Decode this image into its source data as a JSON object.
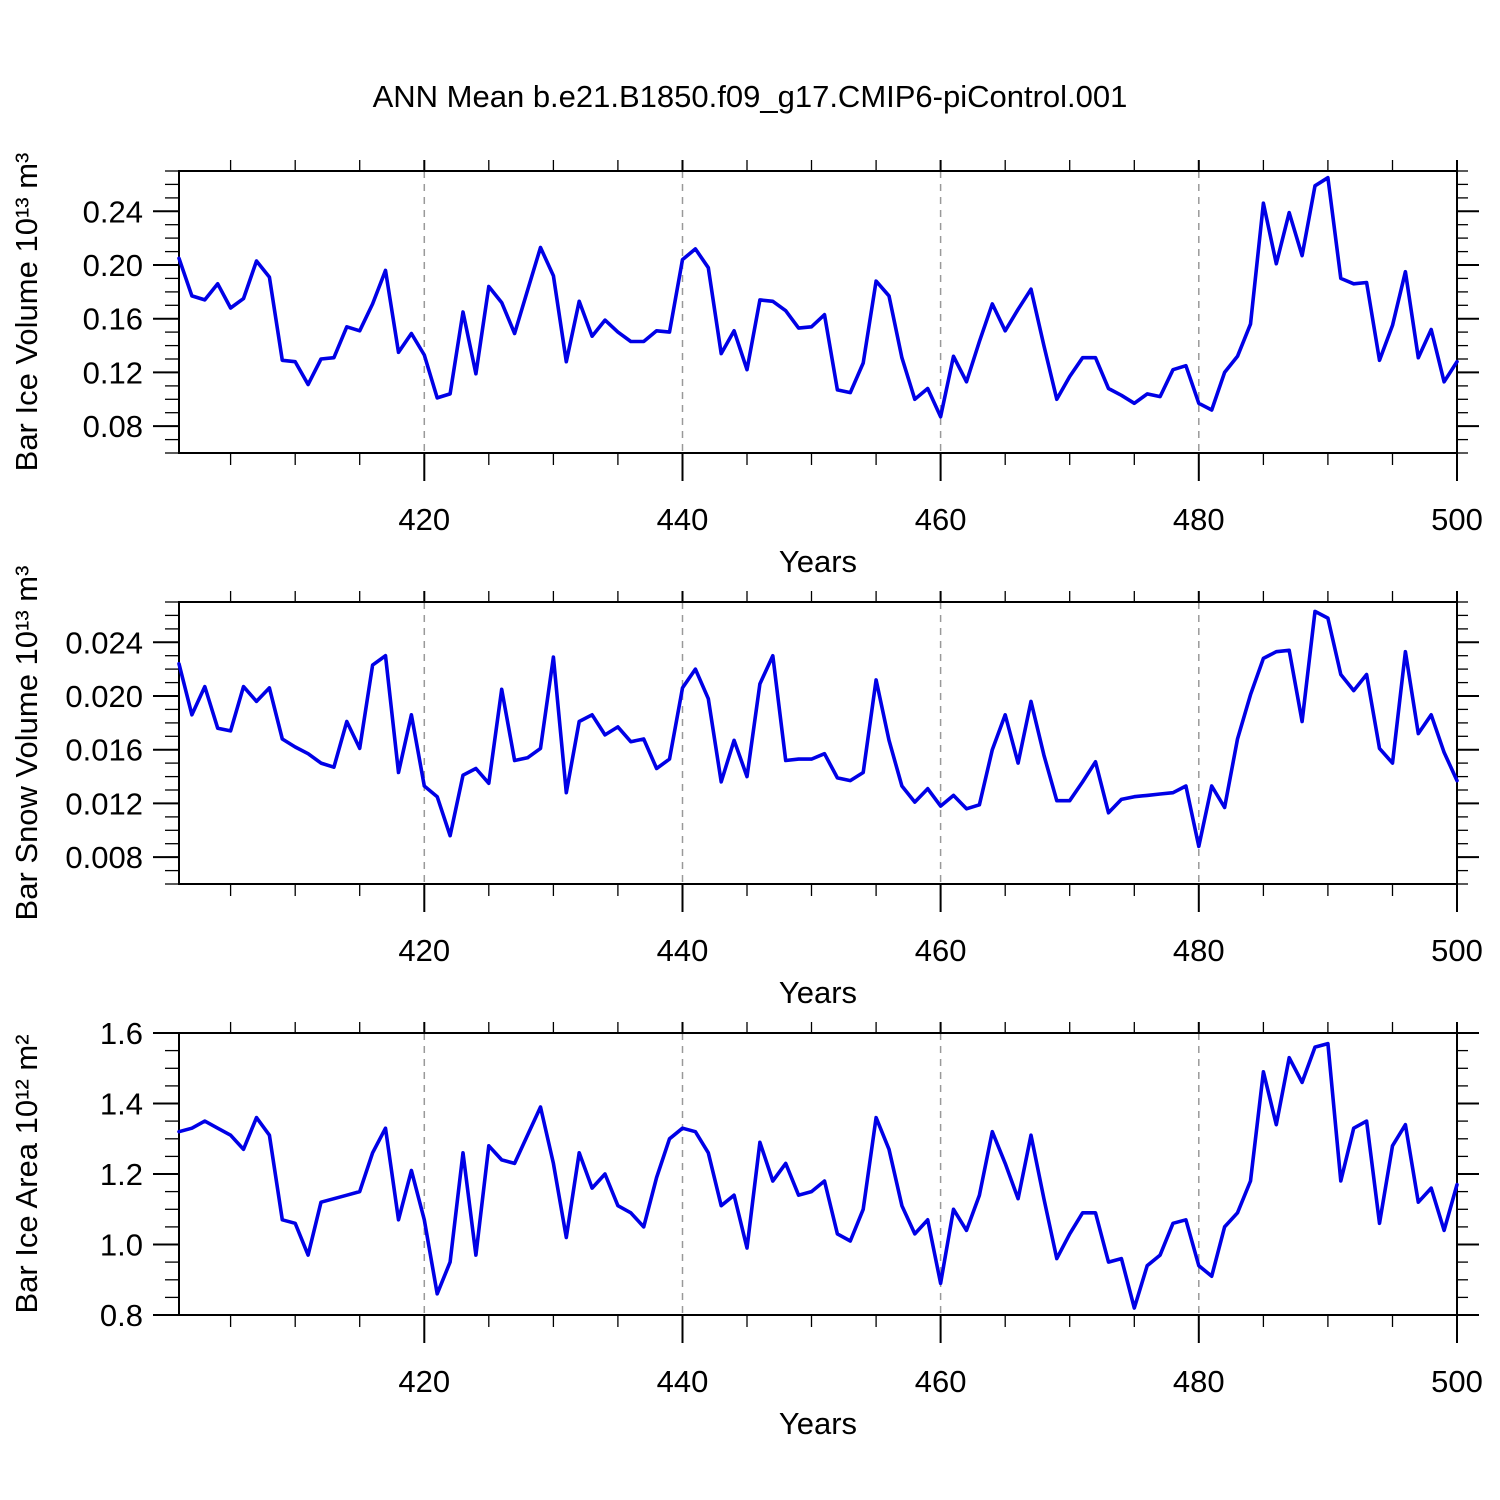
{
  "title": "ANN Mean b.e21.B1850.f09_g17.CMIP6-piControl.001",
  "background": "#ffffff",
  "text_color": "#000000",
  "grid_color": "#999999",
  "line_color": "#0000e6",
  "chart_data": [
    {
      "type": "line",
      "id": "ice-volume",
      "ylabel": "Bar Ice Volume 10¹³ m³",
      "xlabel": "Years",
      "legend": "none",
      "grid": "dashed vertical lines at 420, 440, 460, 480",
      "xlim": [
        401,
        500
      ],
      "ylim": [
        0.06,
        0.27
      ],
      "x_start": 401,
      "x_end": 500,
      "x_step": 1,
      "xticks": [
        420,
        440,
        460,
        480,
        500
      ],
      "xtick_labels": [
        "420",
        "440",
        "460",
        "480",
        "500"
      ],
      "xminor_step": 5,
      "yticks": [
        0.08,
        0.12,
        0.16,
        0.2,
        0.24
      ],
      "ytick_labels": [
        "0.08",
        "0.12",
        "0.16",
        "0.20",
        "0.24"
      ],
      "yminor_step": 0.01,
      "grid_vlines": [
        420,
        440,
        460,
        480
      ],
      "values": [
        0.205,
        0.177,
        0.174,
        0.186,
        0.168,
        0.175,
        0.203,
        0.191,
        0.129,
        0.128,
        0.111,
        0.13,
        0.131,
        0.154,
        0.151,
        0.171,
        0.196,
        0.135,
        0.149,
        0.133,
        0.101,
        0.104,
        0.165,
        0.119,
        0.184,
        0.172,
        0.149,
        0.181,
        0.213,
        0.192,
        0.128,
        0.173,
        0.147,
        0.159,
        0.15,
        0.143,
        0.143,
        0.151,
        0.15,
        0.204,
        0.212,
        0.198,
        0.134,
        0.151,
        0.122,
        0.174,
        0.173,
        0.166,
        0.153,
        0.154,
        0.163,
        0.107,
        0.105,
        0.127,
        0.188,
        0.177,
        0.131,
        0.1,
        0.108,
        0.087,
        0.132,
        0.113,
        0.143,
        0.171,
        0.151,
        0.167,
        0.182,
        0.14,
        0.1,
        0.117,
        0.131,
        0.131,
        0.108,
        0.103,
        0.097,
        0.104,
        0.102,
        0.122,
        0.125,
        0.097,
        0.092,
        0.12,
        0.132,
        0.156,
        0.246,
        0.201,
        0.239,
        0.207,
        0.259,
        0.265,
        0.19,
        0.186,
        0.187,
        0.129,
        0.155,
        0.195,
        0.131,
        0.152,
        0.113,
        0.128
      ]
    },
    {
      "type": "line",
      "id": "snow-volume",
      "ylabel": "Bar Snow Volume 10¹³ m³",
      "xlabel": "Years",
      "legend": "none",
      "grid": "dashed vertical lines at 420, 440, 460, 480",
      "xlim": [
        401,
        500
      ],
      "ylim": [
        0.006,
        0.027
      ],
      "x_start": 401,
      "x_end": 500,
      "x_step": 1,
      "xticks": [
        420,
        440,
        460,
        480,
        500
      ],
      "xtick_labels": [
        "420",
        "440",
        "460",
        "480",
        "500"
      ],
      "xminor_step": 5,
      "yticks": [
        0.008,
        0.012,
        0.016,
        0.02,
        0.024
      ],
      "ytick_labels": [
        "0.008",
        "0.012",
        "0.016",
        "0.020",
        "0.024"
      ],
      "yminor_step": 0.001,
      "grid_vlines": [
        420,
        440,
        460,
        480
      ],
      "values": [
        0.0224,
        0.0186,
        0.0207,
        0.0176,
        0.0174,
        0.0207,
        0.0196,
        0.0206,
        0.0168,
        0.0162,
        0.0157,
        0.015,
        0.0147,
        0.0181,
        0.0161,
        0.0223,
        0.023,
        0.0143,
        0.0186,
        0.0133,
        0.0125,
        0.0096,
        0.0141,
        0.0146,
        0.0135,
        0.0205,
        0.0152,
        0.0154,
        0.0161,
        0.0229,
        0.0128,
        0.0181,
        0.0186,
        0.0171,
        0.0177,
        0.0166,
        0.0168,
        0.0146,
        0.0153,
        0.0206,
        0.022,
        0.0198,
        0.0136,
        0.0167,
        0.014,
        0.0209,
        0.023,
        0.0152,
        0.0153,
        0.0153,
        0.0157,
        0.0139,
        0.0137,
        0.0143,
        0.0212,
        0.0167,
        0.0133,
        0.0121,
        0.0131,
        0.0118,
        0.0126,
        0.0116,
        0.0119,
        0.016,
        0.0186,
        0.015,
        0.0196,
        0.0156,
        0.0122,
        0.0122,
        0.0136,
        0.0151,
        0.0113,
        0.0123,
        0.0125,
        0.0126,
        0.0127,
        0.0128,
        0.0133,
        0.0088,
        0.0133,
        0.0117,
        0.0168,
        0.0201,
        0.0228,
        0.0233,
        0.0234,
        0.0181,
        0.0263,
        0.0258,
        0.0216,
        0.0204,
        0.0216,
        0.0161,
        0.015,
        0.0233,
        0.0172,
        0.0186,
        0.0158,
        0.0137
      ]
    },
    {
      "type": "line",
      "id": "ice-area",
      "ylabel": "Bar Ice Area 10¹² m²",
      "xlabel": "Years",
      "legend": "none",
      "grid": "dashed vertical lines at 420, 440, 460, 480",
      "xlim": [
        401,
        500
      ],
      "ylim": [
        0.8,
        1.6
      ],
      "x_start": 401,
      "x_end": 500,
      "x_step": 1,
      "xticks": [
        420,
        440,
        460,
        480,
        500
      ],
      "xtick_labels": [
        "420",
        "440",
        "460",
        "480",
        "500"
      ],
      "xminor_step": 5,
      "yticks": [
        0.8,
        1.0,
        1.2,
        1.4,
        1.6
      ],
      "ytick_labels": [
        "0.8",
        "1.0",
        "1.2",
        "1.4",
        "1.6"
      ],
      "yminor_step": 0.05,
      "grid_vlines": [
        420,
        440,
        460,
        480
      ],
      "values": [
        1.32,
        1.33,
        1.35,
        1.33,
        1.31,
        1.27,
        1.36,
        1.31,
        1.07,
        1.06,
        0.97,
        1.12,
        1.13,
        1.14,
        1.15,
        1.26,
        1.33,
        1.07,
        1.21,
        1.07,
        0.86,
        0.95,
        1.26,
        0.97,
        1.28,
        1.24,
        1.23,
        1.31,
        1.39,
        1.23,
        1.02,
        1.26,
        1.16,
        1.2,
        1.11,
        1.09,
        1.05,
        1.19,
        1.3,
        1.33,
        1.32,
        1.26,
        1.11,
        1.14,
        0.99,
        1.29,
        1.18,
        1.23,
        1.14,
        1.15,
        1.18,
        1.03,
        1.01,
        1.1,
        1.36,
        1.27,
        1.11,
        1.03,
        1.07,
        0.89,
        1.1,
        1.04,
        1.14,
        1.32,
        1.23,
        1.13,
        1.31,
        1.13,
        0.96,
        1.03,
        1.09,
        1.09,
        0.95,
        0.96,
        0.82,
        0.94,
        0.97,
        1.06,
        1.07,
        0.94,
        0.91,
        1.05,
        1.09,
        1.18,
        1.49,
        1.34,
        1.53,
        1.46,
        1.56,
        1.57,
        1.18,
        1.33,
        1.35,
        1.06,
        1.28,
        1.34,
        1.12,
        1.16,
        1.04,
        1.17
      ]
    }
  ]
}
